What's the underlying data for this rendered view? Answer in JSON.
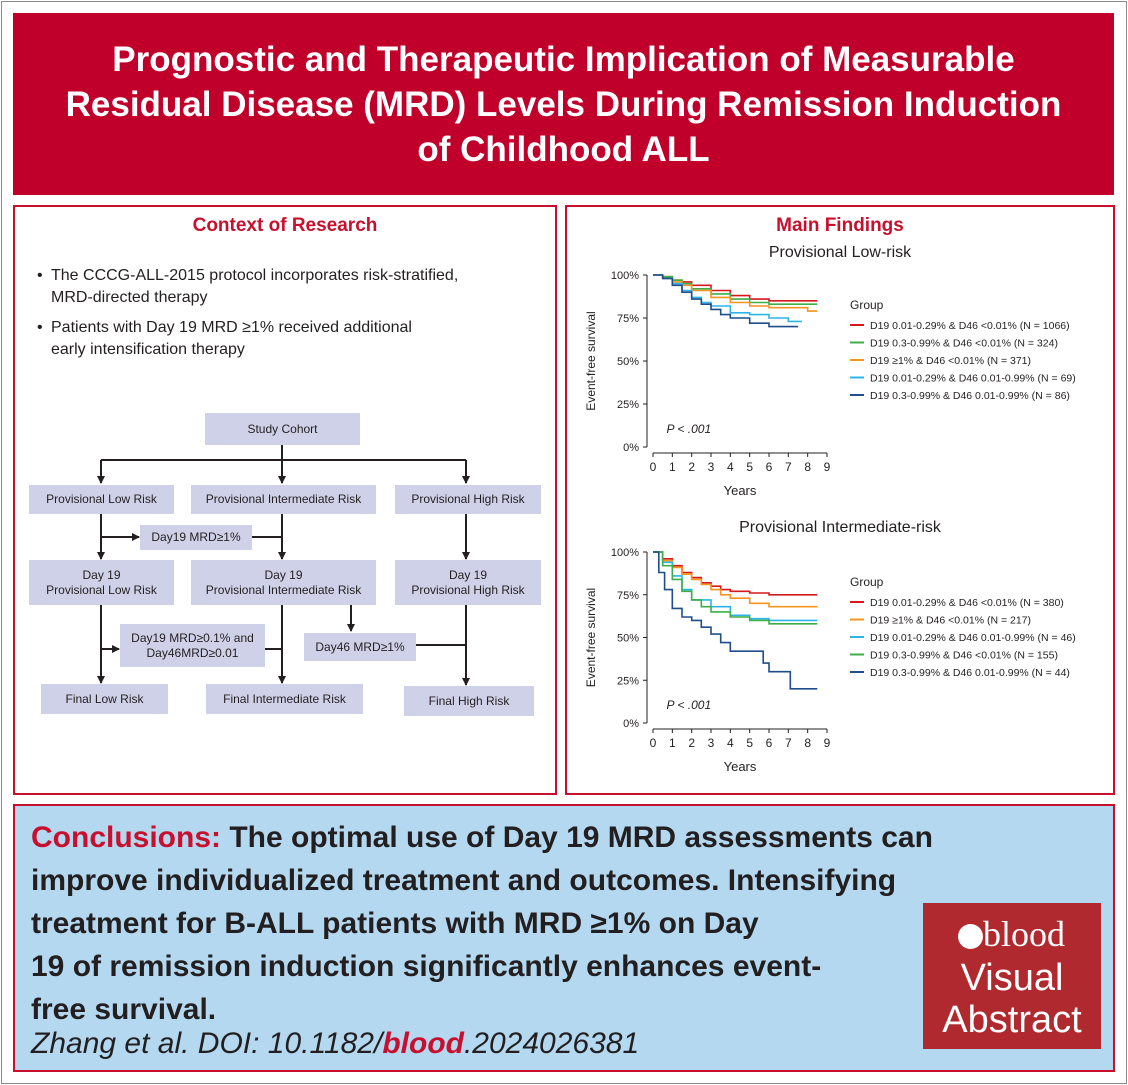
{
  "title": {
    "lines": [
      "Prognostic and Therapeutic Implication of Measurable",
      "Residual Disease (MRD) Levels During Remission Induction",
      "of Childhood ALL"
    ]
  },
  "context": {
    "heading": "Context of Research",
    "bullets": [
      [
        "The CCCG-ALL-2015 protocol incorporates risk-stratified,",
        "MRD-directed therapy"
      ],
      [
        "Patients with Day 19 MRD ≥1% received additional",
        "early intensification therapy"
      ]
    ],
    "flow": {
      "cohort": "Study Cohort",
      "prov_low": "Provisional Low Risk",
      "prov_int": "Provisional Intermediate Risk",
      "prov_high": "Provisional High Risk",
      "d19_mrd": "Day19 MRD≥1%",
      "d19_low": [
        "Day 19",
        "Provisional Low Risk"
      ],
      "d19_int": [
        "Day 19",
        "Provisional Intermediate Risk"
      ],
      "d19_high": [
        "Day 19",
        "Provisional High Risk"
      ],
      "d19_d46": [
        "Day19 MRD≥0.1% and",
        "Day46MRD≥0.01"
      ],
      "d46_mrd": "Day46 MRD≥1%",
      "final_low": "Final Low Risk",
      "final_int": "Final Intermediate Risk",
      "final_high": "Final High Risk"
    }
  },
  "findings": {
    "heading": "Main Findings",
    "charts": [
      {
        "subtitle": "Provisional Low-risk",
        "ylabel": "Event-free survival",
        "xlabel": "Years",
        "p_value": "P < .001",
        "legend_title": "Group"
      },
      {
        "subtitle": "Provisional Intermediate-risk",
        "ylabel": "Event-free survival",
        "xlabel": "Years",
        "p_value": "P < .001",
        "legend_title": "Group"
      }
    ]
  },
  "chart_data": [
    {
      "type": "line",
      "title": "Provisional Low-risk",
      "xlabel": "Years",
      "ylabel": "Event-free survival",
      "xlim": [
        0,
        9
      ],
      "ylim": [
        0,
        100
      ],
      "xticks": [
        "0",
        "1",
        "2",
        "3",
        "4",
        "5",
        "6",
        "7",
        "8",
        "9"
      ],
      "yticks": [
        "0%",
        "25%",
        "50%",
        "75%",
        "100%"
      ],
      "legend_title": "Group",
      "annotation": "P < .001",
      "series": [
        {
          "name": "D19 0.01-0.29% & D46 <0.01% (N = 1066)",
          "color": "#d7191c",
          "x": [
            0,
            0.5,
            1,
            1.5,
            2,
            3,
            4,
            5,
            6,
            7,
            8.5
          ],
          "y": [
            100,
            99,
            97,
            96,
            94,
            91,
            88,
            86,
            85,
            85,
            85
          ]
        },
        {
          "name": "D19 0.3-0.99% & D46 <0.01% (N = 324)",
          "color": "#3fae49",
          "x": [
            0,
            0.5,
            1,
            1.5,
            2,
            3,
            4,
            5,
            6,
            7,
            8.5
          ],
          "y": [
            100,
            99,
            97,
            95,
            92,
            89,
            86,
            84,
            83,
            83,
            83
          ]
        },
        {
          "name": "D19 ≥1% & D46 <0.01% (N = 371)",
          "color": "#f7941d",
          "x": [
            0,
            0.5,
            1,
            1.5,
            2,
            3,
            4,
            5,
            6,
            7,
            8,
            8.5
          ],
          "y": [
            100,
            98,
            96,
            94,
            91,
            87,
            84,
            82,
            81,
            81,
            79,
            79
          ]
        },
        {
          "name": "D19 0.01-0.29% & D46 0.01-0.99% (N = 69)",
          "color": "#2cb5e8",
          "x": [
            0,
            0.5,
            1,
            1.5,
            2,
            2.5,
            3,
            4,
            5,
            6,
            7,
            7.7
          ],
          "y": [
            100,
            98,
            95,
            91,
            87,
            84,
            82,
            78,
            77,
            75,
            73,
            73
          ]
        },
        {
          "name": "D19 0.3-0.99% & D46 0.01-0.99% (N = 86)",
          "color": "#1f4e8c",
          "x": [
            0,
            0.5,
            1,
            1.5,
            2,
            2.5,
            3,
            3.5,
            4,
            5,
            6,
            7,
            7.5
          ],
          "y": [
            100,
            98,
            94,
            90,
            86,
            83,
            80,
            77,
            75,
            72,
            70,
            70,
            70
          ]
        }
      ]
    },
    {
      "type": "line",
      "title": "Provisional Intermediate-risk",
      "xlabel": "Years",
      "ylabel": "Event-free survival",
      "xlim": [
        0,
        9
      ],
      "ylim": [
        0,
        100
      ],
      "xticks": [
        "0",
        "1",
        "2",
        "3",
        "4",
        "5",
        "6",
        "7",
        "8",
        "9"
      ],
      "yticks": [
        "0%",
        "25%",
        "50%",
        "75%",
        "100%"
      ],
      "legend_title": "Group",
      "annotation": "P < .001",
      "series": [
        {
          "name": "D19 0.01-0.29% & D46 <0.01% (N = 380)",
          "color": "#d7191c",
          "x": [
            0,
            0.5,
            1,
            1.5,
            2,
            2.5,
            3,
            3.5,
            4,
            5,
            6,
            7,
            8.5
          ],
          "y": [
            100,
            96,
            92,
            88,
            85,
            82,
            80,
            78,
            77,
            76,
            75,
            75,
            75
          ]
        },
        {
          "name": "D19 ≥1% & D46 <0.01% (N = 217)",
          "color": "#f7941d",
          "x": [
            0,
            0.5,
            1,
            1.5,
            2,
            2.5,
            3,
            3.5,
            4,
            5,
            6,
            7,
            8.5
          ],
          "y": [
            100,
            95,
            91,
            87,
            84,
            81,
            78,
            75,
            73,
            70,
            68,
            68,
            68
          ]
        },
        {
          "name": "D19 0.01-0.29% & D46 0.01-0.99% (N = 46)",
          "color": "#2cb5e8",
          "x": [
            0,
            0.5,
            1,
            1.5,
            2,
            3,
            4,
            5,
            6,
            7,
            8.5
          ],
          "y": [
            100,
            94,
            86,
            78,
            72,
            68,
            63,
            61,
            60,
            60,
            60
          ]
        },
        {
          "name": "D19 0.3-0.99% & D46 <0.01% (N = 155)",
          "color": "#3fae49",
          "x": [
            0,
            0.5,
            1,
            1.5,
            2,
            2.5,
            3,
            4,
            5,
            6,
            7,
            8.5
          ],
          "y": [
            100,
            92,
            84,
            77,
            72,
            68,
            65,
            62,
            60,
            58,
            58,
            58
          ]
        },
        {
          "name": "D19 0.3-0.99% & D46 0.01-0.99% (N = 44)",
          "color": "#1f4e8c",
          "x": [
            0,
            0.3,
            0.6,
            1,
            1.5,
            2,
            2.5,
            3,
            3.5,
            4,
            5,
            5.7,
            6,
            7,
            7.1,
            8.5
          ],
          "y": [
            100,
            88,
            78,
            67,
            62,
            60,
            56,
            52,
            47,
            42,
            42,
            35,
            30,
            30,
            20,
            20
          ]
        }
      ]
    }
  ],
  "conclusions": {
    "label": "Conclusions:",
    "lines": [
      " The optimal use of Day 19 MRD assessments can",
      "improve individualized treatment and outcomes. Intensifying",
      "treatment for B-ALL patients with MRD ≥1% on Day",
      "19 of remission induction significantly enhances event-",
      "free survival."
    ],
    "citation_prefix": "Zhang et al. DOI: 10.1182/",
    "citation_journal": "blood",
    "citation_suffix": ".2024026381"
  },
  "logo": {
    "word": "blood",
    "line1": "Visual",
    "line2": "Abstract"
  },
  "colors": {
    "title_bg": "#c0002a",
    "accent": "#c8102e",
    "flow_box": "#cfd1e8",
    "conclusion_bg": "#b3d8f0",
    "logo_bg": "#b0292e"
  }
}
